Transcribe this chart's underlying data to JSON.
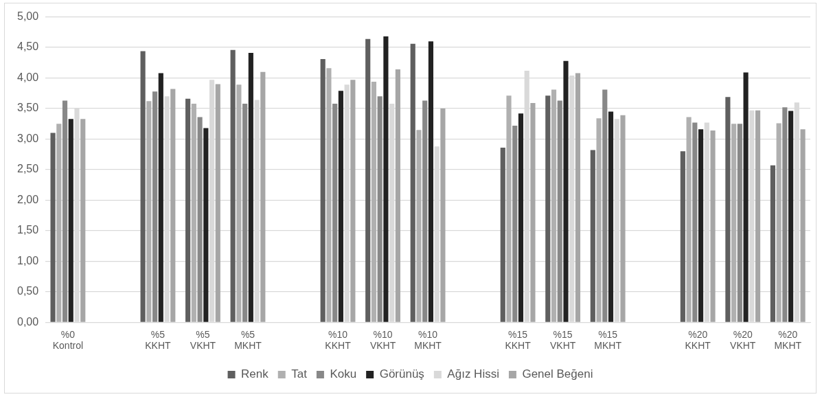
{
  "chart_data": {
    "type": "bar",
    "categories": [
      "%0 Kontrol",
      null,
      "%5 KKHT",
      "%5 VKHT",
      "%5 MKHT",
      null,
      "%10 KKHT",
      "%10 VKHT",
      "%10 MKHT",
      null,
      "%15 KKHT",
      "%15 VKHT",
      "%15 MKHT",
      null,
      "%20 KKHT",
      "%20 VKHT",
      "%20 MKHT"
    ],
    "series": [
      {
        "name": "Renk",
        "color": "#5f5f5f",
        "values": [
          3.1,
          null,
          4.44,
          3.66,
          4.46,
          null,
          4.31,
          4.64,
          4.56,
          null,
          2.86,
          3.71,
          2.82,
          null,
          2.8,
          3.69,
          2.57
        ]
      },
      {
        "name": "Tat",
        "color": "#b0b0b0",
        "values": [
          3.25,
          null,
          3.62,
          3.58,
          3.89,
          null,
          4.16,
          3.94,
          3.15,
          null,
          3.71,
          3.81,
          3.34,
          null,
          3.36,
          3.25,
          3.26
        ]
      },
      {
        "name": "Koku",
        "color": "#888888",
        "values": [
          3.63,
          null,
          3.78,
          3.36,
          3.58,
          null,
          3.58,
          3.7,
          3.63,
          null,
          3.22,
          3.63,
          3.81,
          null,
          3.27,
          3.25,
          3.52
        ]
      },
      {
        "name": "Görünüş",
        "color": "#222222",
        "values": [
          3.33,
          null,
          4.08,
          3.18,
          4.41,
          null,
          3.79,
          4.68,
          4.6,
          null,
          3.42,
          4.28,
          3.45,
          null,
          3.16,
          4.09,
          3.46
        ]
      },
      {
        "name": "Ağız Hissi",
        "color": "#d9d9d9",
        "values": [
          3.5,
          null,
          3.7,
          3.97,
          3.64,
          null,
          3.89,
          3.58,
          2.88,
          null,
          4.12,
          4.04,
          3.33,
          null,
          3.27,
          3.47,
          3.6
        ]
      },
      {
        "name": "Genel Beğeni",
        "color": "#a6a6a6",
        "values": [
          3.33,
          null,
          3.82,
          3.9,
          4.1,
          null,
          3.97,
          4.14,
          3.5,
          null,
          3.59,
          4.08,
          3.39,
          null,
          3.14,
          3.47,
          3.16
        ]
      }
    ],
    "ylim": [
      0,
      5
    ],
    "yticks": [
      {
        "value": 0,
        "label": "0,00"
      },
      {
        "value": 0.5,
        "label": "0,50"
      },
      {
        "value": 1,
        "label": "1,00"
      },
      {
        "value": 1.5,
        "label": "1,50"
      },
      {
        "value": 2,
        "label": "2,00"
      },
      {
        "value": 2.5,
        "label": "2,50"
      },
      {
        "value": 3,
        "label": "3,00"
      },
      {
        "value": 3.5,
        "label": "3,50"
      },
      {
        "value": 4,
        "label": "4,00"
      },
      {
        "value": 4.5,
        "label": "4,50"
      },
      {
        "value": 5,
        "label": "5,00"
      }
    ],
    "grid": "y",
    "legend": "bottom"
  }
}
